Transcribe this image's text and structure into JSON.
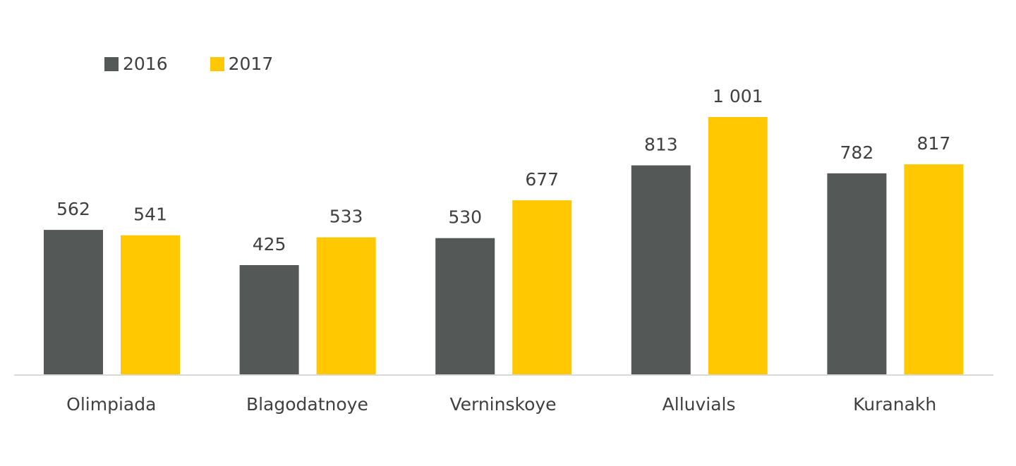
{
  "chart_data": {
    "type": "bar",
    "categories": [
      "Olimpiada",
      "Blagodatnoye",
      "Verninskoye",
      "Alluvials",
      "Kuranakh"
    ],
    "series": [
      {
        "name": "2016",
        "color": "#545857",
        "values": [
          562,
          425,
          530,
          813,
          782
        ],
        "labels": [
          "562",
          "425",
          "530",
          "813",
          "782"
        ]
      },
      {
        "name": "2017",
        "color": "#FFC800",
        "values": [
          541,
          533,
          677,
          1001,
          817
        ],
        "labels": [
          "541",
          "533",
          "677",
          "1 001",
          "817"
        ]
      }
    ],
    "ylim": [
      0,
      1050
    ],
    "grid": false,
    "legend_position": "top-left",
    "label_color": "#404040",
    "axis_color": "#D9D9D9"
  }
}
